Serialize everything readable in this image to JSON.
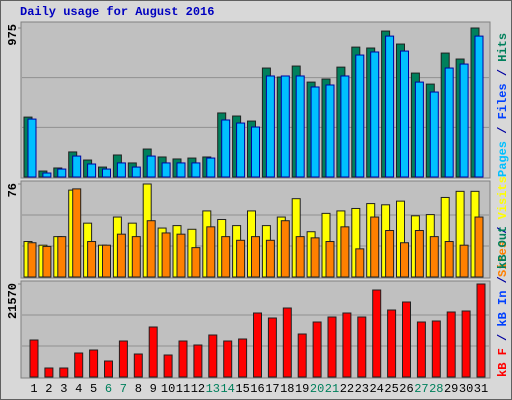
{
  "chart_data": [
    {
      "type": "bar",
      "title": "Daily usage for August 2016",
      "ylim": [
        0,
        975
      ],
      "yticks": [
        975
      ],
      "legend": [
        "Pages",
        " / ",
        "Files",
        " / ",
        "Hits"
      ],
      "legend_colors": [
        "#00c0ff",
        "#0000a0",
        "#0040ff",
        "#0000a0",
        "#00805c"
      ],
      "series": [
        {
          "color": "#00805c",
          "values": [
            392,
            39,
            59,
            164,
            111,
            65,
            144,
            92,
            183,
            131,
            118,
            124,
            131,
            419,
            399,
            366,
            713,
            654,
            726,
            621,
            641,
            719,
            850,
            844,
            955,
            870,
            680,
            608,
            811,
            772,
            975
          ]
        },
        {
          "color": "#00c0ff",
          "values": [
            379,
            26,
            52,
            137,
            85,
            52,
            92,
            65,
            137,
            92,
            92,
            92,
            124,
            373,
            353,
            327,
            661,
            661,
            661,
            589,
            602,
            661,
            798,
            818,
            922,
            824,
            621,
            556,
            713,
            739,
            922
          ]
        }
      ]
    },
    {
      "type": "bar",
      "ylim": [
        0,
        76
      ],
      "yticks": [
        76
      ],
      "legend": [
        "Sites",
        " / ",
        "Visits"
      ],
      "legend_colors": [
        "#ff8000",
        "#0000a0",
        "#ffff00"
      ],
      "series": [
        {
          "color": "#ffff00",
          "values": [
            29,
            26,
            33,
            71,
            44,
            26,
            49,
            44,
            76,
            40,
            42,
            39,
            54,
            47,
            42,
            54,
            42,
            49,
            64,
            37,
            52,
            54,
            56,
            60,
            59,
            62,
            50,
            51,
            65,
            70,
            70
          ]
        },
        {
          "color": "#ff8000",
          "values": [
            28,
            25,
            33,
            72,
            29,
            26,
            35,
            33,
            46,
            36,
            35,
            24,
            41,
            33,
            30,
            33,
            30,
            46,
            33,
            32,
            29,
            41,
            23,
            49,
            38,
            28,
            38,
            33,
            29,
            26,
            49
          ]
        }
      ]
    },
    {
      "type": "bar",
      "ylim": [
        0,
        21570
      ],
      "yticks": [
        21570
      ],
      "legend": [
        "kB F",
        " / ",
        "kB In",
        " / ",
        "kB Out"
      ],
      "legend_colors": [
        "#ff0000",
        "#0000a0",
        "#0040ff",
        "#0000a0",
        "#00805c"
      ],
      "categories": [
        "1",
        "2",
        "3",
        "4",
        "5",
        "6",
        "7",
        "8",
        "9",
        "10",
        "11",
        "12",
        "13",
        "14",
        "15",
        "16",
        "17",
        "18",
        "19",
        "20",
        "21",
        "22",
        "23",
        "24",
        "25",
        "26",
        "27",
        "28",
        "29",
        "30",
        "31"
      ],
      "category_colors": [
        "#000000",
        "#000000",
        "#000000",
        "#000000",
        "#000000",
        "#00805c",
        "#00805c",
        "#000000",
        "#000000",
        "#000000",
        "#000000",
        "#000000",
        "#00805c",
        "#00805c",
        "#000000",
        "#000000",
        "#000000",
        "#000000",
        "#000000",
        "#00805c",
        "#00805c",
        "#000000",
        "#000000",
        "#000000",
        "#000000",
        "#000000",
        "#00805c",
        "#00805c",
        "#000000",
        "#000000",
        "#000000"
      ],
      "series": [
        {
          "color": "#ff0000",
          "values": [
            8581,
            2087,
            2087,
            5566,
            6262,
            3711,
            8349,
            5334,
            11597,
            5103,
            8349,
            7422,
            9741,
            8349,
            8814,
            14843,
            13684,
            16003,
            9973,
            12756,
            13916,
            14843,
            13916,
            20178,
            15539,
            17395,
            12756,
            12988,
            15076,
            15308,
            21570
          ]
        }
      ]
    }
  ]
}
